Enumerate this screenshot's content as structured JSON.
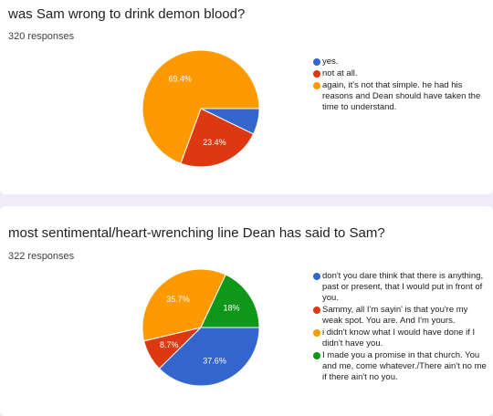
{
  "colors": {
    "blue": "#3366cc",
    "red": "#dc3912",
    "orange": "#ff9900",
    "green": "#109618"
  },
  "chart_data": [
    {
      "type": "pie",
      "title": "was Sam wrong to drink demon blood?",
      "subtitle": "320 responses",
      "legend_position": "right",
      "slices": [
        {
          "label": "yes.",
          "value": 7.2,
          "color": "#3366cc",
          "data_label": ""
        },
        {
          "label": "not at all.",
          "value": 23.4,
          "color": "#dc3912",
          "data_label": "23.4%"
        },
        {
          "label": "again, it's not that simple. he had his reasons and Dean should have taken the time to understand.",
          "value": 69.4,
          "color": "#ff9900",
          "data_label": "69.4%"
        }
      ]
    },
    {
      "type": "pie",
      "title": "most sentimental/heart-wrenching line Dean has said to Sam?",
      "subtitle": "322 responses",
      "legend_position": "right",
      "slices": [
        {
          "label": "don't you dare think that there is anything, past or present, that I would put in front of you.",
          "value": 37.6,
          "color": "#3366cc",
          "data_label": "37.6%"
        },
        {
          "label": "Sammy, all I'm sayin' is that you're my weak spot. You are. And I'm yours.",
          "value": 8.7,
          "color": "#dc3912",
          "data_label": "8.7%"
        },
        {
          "label": "i didn't know what I would have done if I didn't have you.",
          "value": 35.7,
          "color": "#ff9900",
          "data_label": "35.7%"
        },
        {
          "label": "I made you a promise in that church. You and me, come whatever./There ain't no me if there ain't no you.",
          "value": 18.0,
          "color": "#109618",
          "data_label": "18%"
        }
      ]
    }
  ]
}
